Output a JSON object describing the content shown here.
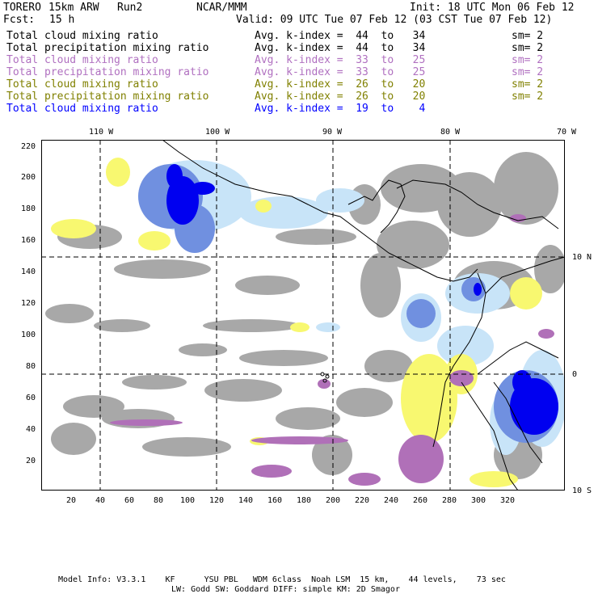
{
  "header": {
    "model": "TORERO",
    "resolution": "15km ARW",
    "run": "Run2",
    "org": "NCAR/MMM",
    "init": "Init: 18 UTC Mon 06 Feb 12",
    "fcst_label": "Fcst:",
    "fcst_value": "15 h",
    "valid": "Valid: 09 UTC Tue 07 Feb 12 (03 CST Tue 07 Feb 12)"
  },
  "legend": [
    {
      "field": "Total cloud mixing ratio",
      "range": "Avg. k-index =  44  to   34",
      "sm": "sm= 2",
      "color": "#000000"
    },
    {
      "field": "Total precipitation mixing ratio",
      "range": "Avg. k-index =  44  to   34",
      "sm": "sm= 2",
      "color": "#000000"
    },
    {
      "field": "Total cloud mixing ratio",
      "range": "Avg. k-index =  33  to   25",
      "sm": "sm= 2",
      "color": "#b070c0"
    },
    {
      "field": "Total precipitation mixing ratio",
      "range": "Avg. k-index =  33  to   25",
      "sm": "sm= 2",
      "color": "#b070c0"
    },
    {
      "field": "Total cloud mixing ratio",
      "range": "Avg. k-index =  26  to   20",
      "sm": "sm= 2",
      "color": "#808000"
    },
    {
      "field": "Total precipitation mixing ratio",
      "range": "Avg. k-index =  26  to   20",
      "sm": "sm= 2",
      "color": "#808000"
    },
    {
      "field": "Total cloud mixing ratio",
      "range": "Avg. k-index =  19  to    4",
      "sm": "",
      "color": "#0000ff"
    }
  ],
  "map": {
    "lon_labels": [
      "110 W",
      "100 W",
      "90 W",
      "80 W",
      "70 W"
    ],
    "lat_labels": [
      "10 N",
      "0",
      "10 S"
    ],
    "y_ticks": [
      "220",
      "200",
      "180",
      "160",
      "140",
      "120",
      "100",
      "80",
      "60",
      "40",
      "20"
    ],
    "x_ticks": [
      "20",
      "40",
      "60",
      "80",
      "100",
      "120",
      "140",
      "160",
      "180",
      "200",
      "220",
      "240",
      "260",
      "280",
      "300",
      "320"
    ],
    "colors": {
      "gray": "#a8a8a8",
      "light_blue": "#c8e4f8",
      "mid_blue": "#7090e0",
      "dark_blue": "#0000f0",
      "yellow": "#f8f870",
      "purple": "#b070b8"
    }
  },
  "footer": {
    "line1": "Model Info: V3.3.1    KF      YSU PBL   WDM 6class  Noah LSM  15 km,    44 levels,    73 sec",
    "line2": "LW: Godd SW: Goddard DIFF: simple KM: 2D Smagor"
  }
}
